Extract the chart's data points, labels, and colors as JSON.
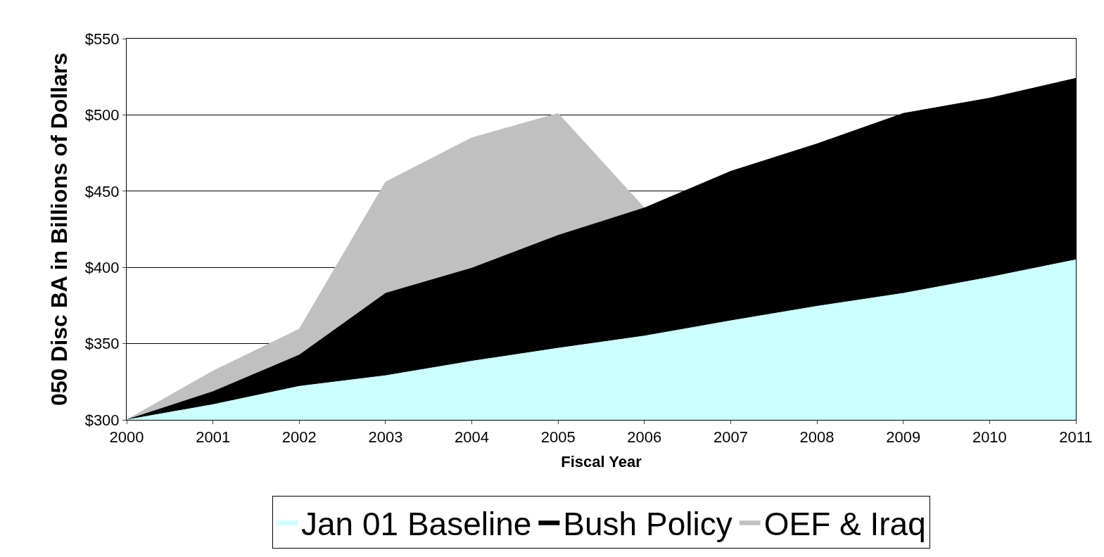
{
  "chart_data": {
    "type": "area",
    "xlabel": "Fiscal Year",
    "ylabel": "050 Disc BA in Billions of Dollars",
    "x": [
      2000,
      2001,
      2002,
      2003,
      2004,
      2005,
      2006,
      2007,
      2008,
      2009,
      2010,
      2011
    ],
    "series": [
      {
        "name": "Jan 01 Baseline",
        "color": "#ccffff",
        "values": [
          300,
          310,
          322,
          329,
          338.5,
          347,
          355,
          365,
          374.5,
          383,
          393.5,
          405
        ]
      },
      {
        "name": "Bush Policy",
        "color": "#000000",
        "values": [
          300,
          318.5,
          342.5,
          383,
          399.5,
          421,
          439,
          463,
          481,
          501,
          511,
          524
        ]
      },
      {
        "name": "OEF & Iraq",
        "color": "#c0c0c0",
        "values": [
          300,
          332,
          359.5,
          456,
          485,
          501,
          439,
          null,
          null,
          null,
          null,
          null
        ]
      }
    ],
    "xlim": [
      2000,
      2011
    ],
    "xticks": [
      2000,
      2001,
      2002,
      2003,
      2004,
      2005,
      2006,
      2007,
      2008,
      2009,
      2010,
      2011
    ],
    "ylim": [
      300,
      550
    ],
    "yticks": [
      {
        "value": 300,
        "label": "$300"
      },
      {
        "value": 350,
        "label": "$350"
      },
      {
        "value": 400,
        "label": "$400"
      },
      {
        "value": 450,
        "label": "$450"
      },
      {
        "value": 500,
        "label": "$500"
      },
      {
        "value": 550,
        "label": "$550"
      }
    ],
    "grid": "y",
    "legend": "bottom"
  }
}
